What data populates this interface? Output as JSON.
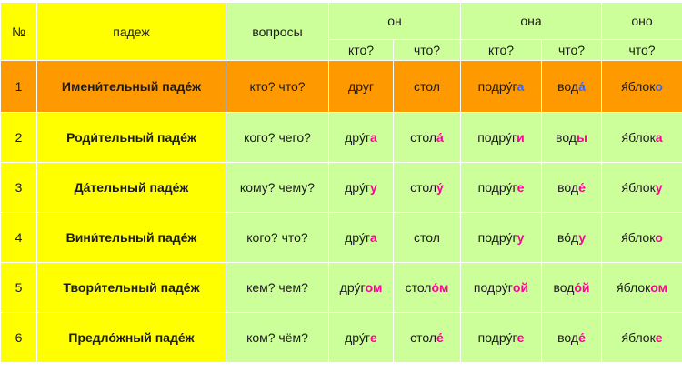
{
  "header": {
    "num": "№",
    "case": "падеж",
    "questions": "вопросы",
    "on": "он",
    "ona": "она",
    "ono": "оно",
    "kto": "кто?",
    "chto": "что?"
  },
  "rows": [
    {
      "num": "1",
      "case": "Имени́тельный паде́ж",
      "questions": "кто? что?",
      "drug": {
        "stem": "друг",
        "end": ""
      },
      "stol": {
        "stem": "стол",
        "end": ""
      },
      "podruga": {
        "stem": "подру́г",
        "end": "а"
      },
      "voda": {
        "stem": "вод",
        "end": "а́"
      },
      "yabloko": {
        "stem": "я́блок",
        "end": "о"
      }
    },
    {
      "num": "2",
      "case": "Роди́тельный паде́ж",
      "questions": "кого? чего?",
      "drug": {
        "stem": "дру́г",
        "end": "а"
      },
      "stol": {
        "stem": "стол",
        "end": "а́"
      },
      "podruga": {
        "stem": "подру́г",
        "end": "и"
      },
      "voda": {
        "stem": "вод",
        "end": "ы"
      },
      "yabloko": {
        "stem": "я́блок",
        "end": "а"
      }
    },
    {
      "num": "3",
      "case": "Да́тельный паде́ж",
      "questions": "кому? чему?",
      "drug": {
        "stem": "дру́г",
        "end": "у"
      },
      "stol": {
        "stem": "стол",
        "end": "у́"
      },
      "podruga": {
        "stem": "подру́г",
        "end": "е"
      },
      "voda": {
        "stem": "вод",
        "end": "е́"
      },
      "yabloko": {
        "stem": "я́блок",
        "end": "у"
      }
    },
    {
      "num": "4",
      "case": "Вини́тельный паде́ж",
      "questions": "кого? что?",
      "drug": {
        "stem": "дру́г",
        "end": "а"
      },
      "stol": {
        "stem": "стол",
        "end": ""
      },
      "podruga": {
        "stem": "подру́г",
        "end": "у"
      },
      "voda": {
        "stem": "во́д",
        "end": "у"
      },
      "yabloko": {
        "stem": "я́блок",
        "end": "о"
      }
    },
    {
      "num": "5",
      "case": "Твори́тельный паде́ж",
      "questions": "кем? чем?",
      "drug": {
        "stem": "дру́г",
        "end": "ом"
      },
      "stol": {
        "stem": "стол",
        "end": "о́м"
      },
      "podruga": {
        "stem": "подру́г",
        "end": "ой"
      },
      "voda": {
        "stem": "вод",
        "end": "о́й"
      },
      "yabloko": {
        "stem": "я́блок",
        "end": "ом"
      }
    },
    {
      "num": "6",
      "case": "Предло́жный паде́ж",
      "questions": "ком? чём?",
      "drug": {
        "stem": "дру́г",
        "end": "е"
      },
      "stol": {
        "stem": "стол",
        "end": "е́"
      },
      "podruga": {
        "stem": "подру́г",
        "end": "е"
      },
      "voda": {
        "stem": "вод",
        "end": "е́"
      },
      "yabloko": {
        "stem": "я́блок",
        "end": "е"
      }
    }
  ],
  "colors": {
    "yellow": "#ffff00",
    "orange": "#ff9900",
    "green": "#ccff99",
    "ending_pink": "#ff0099",
    "ending_blue": "#3366ff"
  }
}
